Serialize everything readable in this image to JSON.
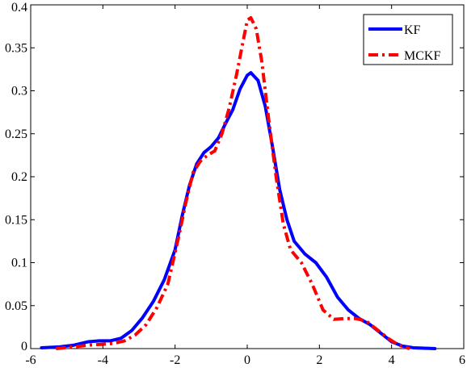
{
  "chart_data": {
    "type": "line",
    "xlim": [
      -6,
      6
    ],
    "ylim": [
      0,
      0.4
    ],
    "x_ticks": [
      "-6",
      "-4",
      "-2",
      "0",
      "2",
      "4",
      "6"
    ],
    "y_ticks": [
      "0",
      "0.05",
      "0.1",
      "0.15",
      "0.2",
      "0.25",
      "0.3",
      "0.35",
      "0.4"
    ],
    "grid": false,
    "legend_position": "top-right",
    "series": [
      {
        "name": "KF",
        "color": "#0000ff",
        "style": "solid",
        "x": [
          -5.7,
          -5.2,
          -4.8,
          -4.4,
          -4.1,
          -3.8,
          -3.5,
          -3.2,
          -2.9,
          -2.6,
          -2.3,
          -2.0,
          -1.8,
          -1.6,
          -1.4,
          -1.2,
          -1.0,
          -0.8,
          -0.6,
          -0.4,
          -0.2,
          0.0,
          0.1,
          0.3,
          0.5,
          0.7,
          0.9,
          1.1,
          1.3,
          1.6,
          1.9,
          2.2,
          2.5,
          2.8,
          3.1,
          3.4,
          3.7,
          4.0,
          4.3,
          4.6,
          4.9,
          5.2
        ],
        "y": [
          0.001,
          0.002,
          0.004,
          0.008,
          0.009,
          0.009,
          0.012,
          0.021,
          0.036,
          0.055,
          0.08,
          0.115,
          0.155,
          0.19,
          0.215,
          0.228,
          0.235,
          0.245,
          0.262,
          0.278,
          0.302,
          0.318,
          0.321,
          0.312,
          0.282,
          0.235,
          0.185,
          0.15,
          0.125,
          0.11,
          0.1,
          0.083,
          0.06,
          0.045,
          0.035,
          0.028,
          0.018,
          0.008,
          0.003,
          0.001,
          0.0005,
          0.0
        ]
      },
      {
        "name": "MCKF",
        "color": "#ff0000",
        "style": "dashdot",
        "x": [
          -5.3,
          -4.8,
          -4.4,
          -4.0,
          -3.7,
          -3.4,
          -3.1,
          -2.8,
          -2.5,
          -2.2,
          -1.9,
          -1.7,
          -1.5,
          -1.3,
          -1.1,
          -0.9,
          -0.7,
          -0.5,
          -0.3,
          -0.15,
          0.0,
          0.1,
          0.25,
          0.4,
          0.6,
          0.8,
          1.0,
          1.2,
          1.5,
          1.8,
          2.1,
          2.4,
          2.7,
          3.0,
          3.3,
          3.6,
          3.9,
          4.2,
          4.5
        ],
        "y": [
          0.0,
          0.002,
          0.004,
          0.005,
          0.006,
          0.009,
          0.016,
          0.028,
          0.048,
          0.075,
          0.13,
          0.17,
          0.205,
          0.218,
          0.225,
          0.23,
          0.25,
          0.28,
          0.318,
          0.35,
          0.382,
          0.385,
          0.372,
          0.335,
          0.265,
          0.2,
          0.145,
          0.115,
          0.1,
          0.075,
          0.045,
          0.034,
          0.035,
          0.035,
          0.032,
          0.022,
          0.012,
          0.004,
          0.0
        ]
      }
    ]
  }
}
